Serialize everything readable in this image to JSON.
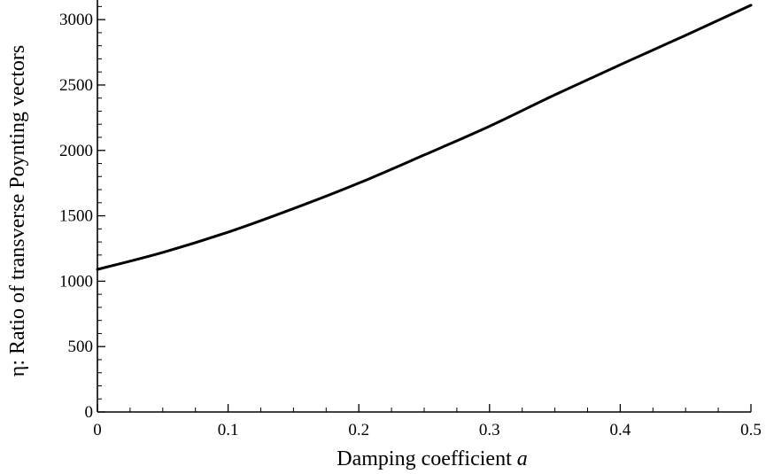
{
  "chart_data": {
    "type": "line",
    "title": "",
    "xlabel_text": "Damping coefficient ",
    "xlabel_var": "a",
    "ylabel": "η: Ratio of transverse Poynting vectors",
    "xlim": [
      0,
      0.5
    ],
    "ylim": [
      0,
      3150
    ],
    "xticks": [
      "0",
      "0.1",
      "0.2",
      "0.3",
      "0.4",
      "0.5"
    ],
    "yticks": [
      "0",
      "500",
      "1000",
      "1500",
      "2000",
      "2500",
      "3000"
    ],
    "grid": false,
    "series": [
      {
        "x": [
          0,
          0.05,
          0.1,
          0.15,
          0.2,
          0.25,
          0.3,
          0.35,
          0.4,
          0.45,
          0.5
        ],
        "y": [
          1090,
          1220,
          1375,
          1555,
          1750,
          1965,
          2185,
          2425,
          2655,
          2880,
          3110
        ]
      }
    ]
  }
}
